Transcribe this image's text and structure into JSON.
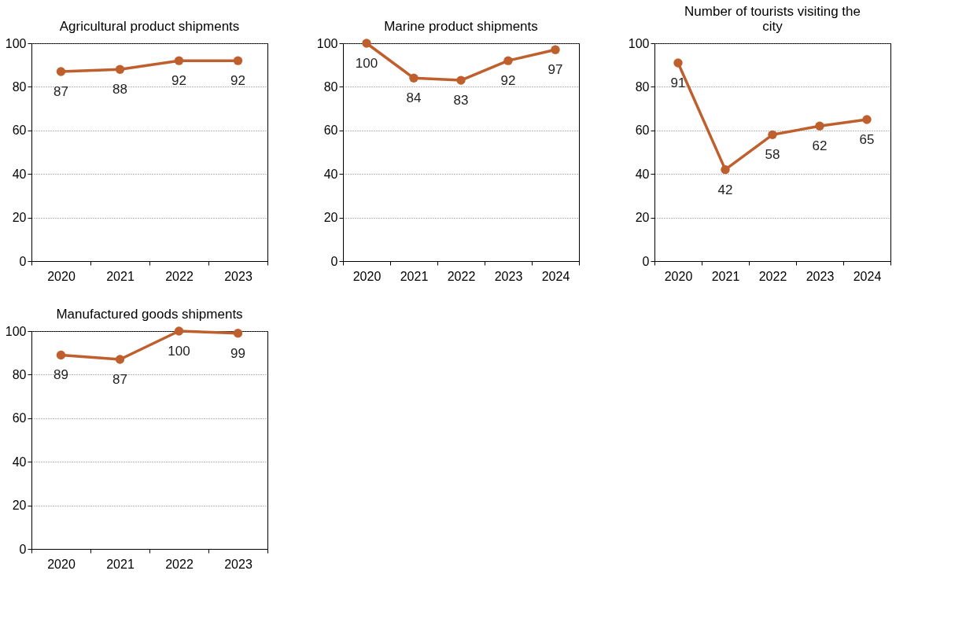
{
  "chart_data": [
    {
      "type": "line",
      "title": "Agricultural product shipments",
      "categories": [
        "2020",
        "2021",
        "2022",
        "2023"
      ],
      "series": [
        {
          "color": "#bf5f2e",
          "values": [
            87,
            88,
            92,
            92
          ]
        }
      ],
      "ylim": [
        0,
        100
      ],
      "yticks": [
        0,
        20,
        40,
        60,
        80,
        100
      ],
      "grid": "y",
      "marker": "circle",
      "line_style": "solid",
      "data_labels": true
    },
    {
      "type": "line",
      "title": "Marine product shipments",
      "categories": [
        "2020",
        "2021",
        "2022",
        "2023",
        "2024"
      ],
      "series": [
        {
          "color": "#bf5f2e",
          "values": [
            100,
            84,
            83,
            92,
            97
          ]
        }
      ],
      "ylim": [
        0,
        100
      ],
      "yticks": [
        0,
        20,
        40,
        60,
        80,
        100
      ],
      "grid": "y",
      "marker": "circle",
      "line_style": "solid",
      "data_labels": true
    },
    {
      "type": "line",
      "title": "Number of tourists visiting the city",
      "categories": [
        "2020",
        "2021",
        "2022",
        "2023",
        "2024"
      ],
      "series": [
        {
          "color": "#bf5f2e",
          "values": [
            91,
            42,
            58,
            62,
            65
          ]
        }
      ],
      "ylim": [
        0,
        100
      ],
      "yticks": [
        0,
        20,
        40,
        60,
        80,
        100
      ],
      "grid": "y",
      "marker": "circle",
      "line_style": "solid",
      "data_labels": true
    },
    {
      "type": "line",
      "title": "Manufactured goods shipments",
      "categories": [
        "2020",
        "2021",
        "2022",
        "2023"
      ],
      "series": [
        {
          "color": "#bf5f2e",
          "values": [
            89,
            87,
            100,
            99
          ]
        }
      ],
      "ylim": [
        0,
        100
      ],
      "yticks": [
        0,
        20,
        40,
        60,
        80,
        100
      ],
      "grid": "y",
      "marker": "circle",
      "line_style": "solid",
      "data_labels": true
    }
  ]
}
